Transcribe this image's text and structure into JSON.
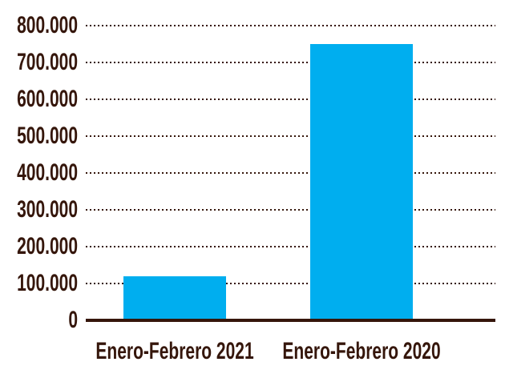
{
  "chart_data": {
    "type": "bar",
    "categories": [
      "Enero-Febrero 2021",
      "Enero-Febrero 2020"
    ],
    "values": [
      120000,
      750000
    ],
    "title": "",
    "xlabel": "",
    "ylabel": "",
    "ylim": [
      0,
      800000
    ],
    "ytick_step": 100000,
    "yticks": [
      {
        "value": 0,
        "label": "0"
      },
      {
        "value": 100000,
        "label": "100.000"
      },
      {
        "value": 200000,
        "label": "200.000"
      },
      {
        "value": 300000,
        "label": "300.000"
      },
      {
        "value": 400000,
        "label": "400.000"
      },
      {
        "value": 500000,
        "label": "500.000"
      },
      {
        "value": 600000,
        "label": "600.000"
      },
      {
        "value": 700000,
        "label": "700.000"
      },
      {
        "value": 800000,
        "label": "800.000"
      }
    ],
    "grid": "horizontal-dotted",
    "legend": "none"
  },
  "colors": {
    "bar": "#00AEEF",
    "text": "#35160B",
    "grid": "#35160B",
    "axis": "#35160B",
    "background": "#FFFFFF"
  }
}
